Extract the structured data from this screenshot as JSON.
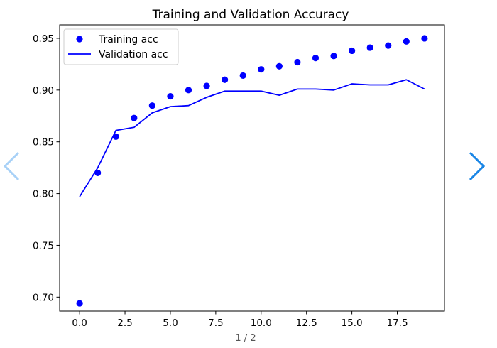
{
  "chart_data": {
    "type": "line",
    "title": "Training and Validation Accuracy",
    "xlabel": "",
    "ylabel": "",
    "xlim": [
      -1.1,
      20.1
    ],
    "ylim": [
      0.6865,
      0.963
    ],
    "x_ticks": [
      0.0,
      2.5,
      5.0,
      7.5,
      10.0,
      12.5,
      15.0,
      17.5
    ],
    "x_tick_labels": [
      "0.0",
      "2.5",
      "5.0",
      "7.5",
      "10.0",
      "12.5",
      "15.0",
      "17.5"
    ],
    "y_ticks": [
      0.7,
      0.75,
      0.8,
      0.85,
      0.9,
      0.95
    ],
    "y_tick_labels": [
      "0.70",
      "0.75",
      "0.80",
      "0.85",
      "0.90",
      "0.95"
    ],
    "legend_position": "top-left",
    "color": "#0000ff",
    "series": [
      {
        "name": "Training acc",
        "style": "points",
        "x": [
          0,
          1,
          2,
          3,
          4,
          5,
          6,
          7,
          8,
          9,
          10,
          11,
          12,
          13,
          14,
          15,
          16,
          17,
          18,
          19
        ],
        "values": [
          0.694,
          0.82,
          0.855,
          0.873,
          0.885,
          0.894,
          0.9,
          0.904,
          0.91,
          0.914,
          0.92,
          0.923,
          0.927,
          0.931,
          0.933,
          0.938,
          0.941,
          0.943,
          0.947,
          0.95
        ]
      },
      {
        "name": "Validation acc",
        "style": "line",
        "x": [
          0,
          1,
          2,
          3,
          4,
          5,
          6,
          7,
          8,
          9,
          10,
          11,
          12,
          13,
          14,
          15,
          16,
          17,
          18,
          19
        ],
        "values": [
          0.797,
          0.825,
          0.861,
          0.864,
          0.878,
          0.884,
          0.885,
          0.893,
          0.899,
          0.899,
          0.899,
          0.895,
          0.901,
          0.901,
          0.9,
          0.906,
          0.905,
          0.905,
          0.91,
          0.901
        ]
      }
    ]
  },
  "pager": {
    "label": "1 / 2"
  },
  "navigation": {
    "prev_color": "#a8d1f7",
    "next_color": "#1a86e6",
    "prev_icon": "chevron-left-icon",
    "next_icon": "chevron-right-icon"
  }
}
